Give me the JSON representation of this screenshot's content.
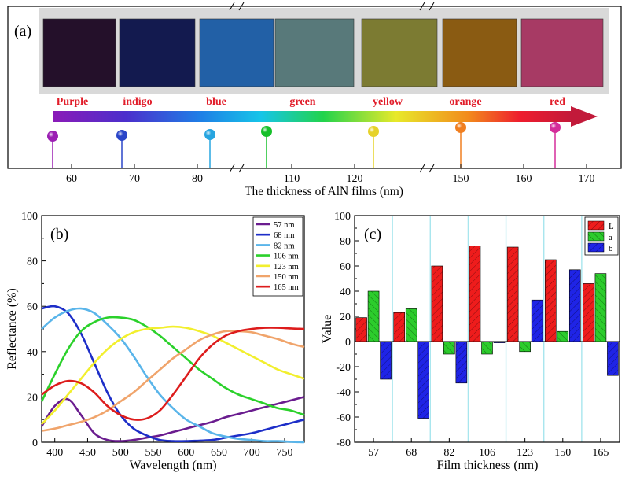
{
  "chart_data": [
    {
      "panel": "(a)",
      "type": "other",
      "samples": [
        {
          "label": "Purple",
          "thickness": 57,
          "color": "#9b1fb3",
          "film": "#24102a"
        },
        {
          "label": "indigo",
          "thickness": 68,
          "color": "#2a45c8",
          "film": "#131a4f"
        },
        {
          "label": "blue",
          "thickness": 82,
          "color": "#27a5e0",
          "film": "#2260a6"
        },
        {
          "label": "green",
          "thickness": 106,
          "color": "#16c02a",
          "film": "#58797a"
        },
        {
          "label": "yellow",
          "thickness": 123,
          "color": "#e6d22a",
          "film": "#7c7b32"
        },
        {
          "label": "orange",
          "thickness": 150,
          "color": "#f07f21",
          "film": "#8a5b12"
        },
        {
          "label": "red",
          "thickness": 165,
          "color": "#d42d9a",
          "film": "#a73a64"
        }
      ],
      "xticks": [
        60,
        70,
        80,
        110,
        120,
        150,
        160,
        170
      ],
      "xlabel": "The thickness of AlN films (nm)"
    },
    {
      "panel": "(b)",
      "type": "line",
      "xlabel": "Wavelength (nm)",
      "ylabel": "Reflectance (%)",
      "xlim": [
        380,
        780
      ],
      "ylim": [
        0,
        100
      ],
      "xticks": [
        400,
        450,
        500,
        550,
        600,
        650,
        700,
        750
      ],
      "yticks": [
        0,
        20,
        40,
        60,
        80,
        100
      ],
      "x": [
        380,
        400,
        420,
        440,
        460,
        480,
        500,
        520,
        540,
        560,
        580,
        600,
        620,
        640,
        660,
        680,
        700,
        720,
        740,
        760,
        780
      ],
      "series": [
        {
          "name": "57 nm",
          "color": "#6a1c8f",
          "values": [
            7,
            16,
            19,
            12,
            4,
            1,
            0.5,
            1,
            2,
            3,
            4.5,
            6,
            7.5,
            9,
            11,
            12.5,
            14,
            15.5,
            17,
            18.5,
            20
          ]
        },
        {
          "name": "68 nm",
          "color": "#1d2ec8",
          "values": [
            59,
            60,
            57,
            48,
            35,
            22,
            12,
            6,
            3,
            1,
            0.5,
            0.5,
            0.7,
            1,
            2,
            3,
            4,
            5.5,
            7,
            8.5,
            10
          ]
        },
        {
          "name": "82 nm",
          "color": "#5ab5ea",
          "values": [
            50,
            55,
            58,
            59,
            57,
            52,
            46,
            38,
            29,
            21,
            15,
            10,
            7,
            4,
            2.5,
            1.5,
            1,
            0.5,
            0.5,
            0.2,
            0
          ]
        },
        {
          "name": "106 nm",
          "color": "#2bd12b",
          "values": [
            18,
            30,
            41,
            49,
            53,
            55,
            55,
            54,
            51,
            47,
            42,
            37,
            32,
            28,
            24,
            21,
            19,
            17,
            15,
            14,
            12
          ]
        },
        {
          "name": "123 nm",
          "color": "#f2ef2e",
          "values": [
            8,
            14,
            21,
            28,
            35,
            41,
            45.5,
            48.5,
            50,
            50.5,
            51,
            50.5,
            49,
            47,
            44,
            41,
            38,
            35,
            32,
            30,
            28
          ]
        },
        {
          "name": "150 nm",
          "color": "#f0a46b",
          "values": [
            5,
            6,
            7.5,
            9,
            11,
            14,
            18,
            22,
            27,
            32,
            37,
            41,
            45,
            47.5,
            49,
            49,
            48.5,
            47,
            45.5,
            43.5,
            42
          ]
        },
        {
          "name": "165 nm",
          "color": "#dd1c1c",
          "values": [
            21,
            25,
            27,
            26,
            22,
            16,
            12,
            10,
            10.5,
            14,
            21,
            29,
            37,
            43,
            47,
            49,
            50,
            50.5,
            50.5,
            50.2,
            50
          ]
        }
      ]
    },
    {
      "panel": "(c)",
      "type": "bar",
      "xlabel": "Film thickness (nm)",
      "ylabel": "Value",
      "ylim": [
        -80,
        100
      ],
      "yticks": [
        -80,
        -60,
        -40,
        -20,
        0,
        20,
        40,
        60,
        80,
        100
      ],
      "categories": [
        "57",
        "68",
        "82",
        "106",
        "123",
        "150",
        "165"
      ],
      "series": [
        {
          "name": "L",
          "color": "#ee1c1c",
          "values": [
            19,
            23,
            60,
            76,
            75,
            65,
            46
          ]
        },
        {
          "name": "a",
          "color": "#2ccc2c",
          "values": [
            40,
            26,
            -10,
            -10,
            -8,
            8,
            54
          ]
        },
        {
          "name": "b",
          "color": "#1f24e6",
          "values": [
            -30,
            -61,
            -33,
            -1,
            33,
            57,
            -27
          ]
        }
      ]
    }
  ]
}
